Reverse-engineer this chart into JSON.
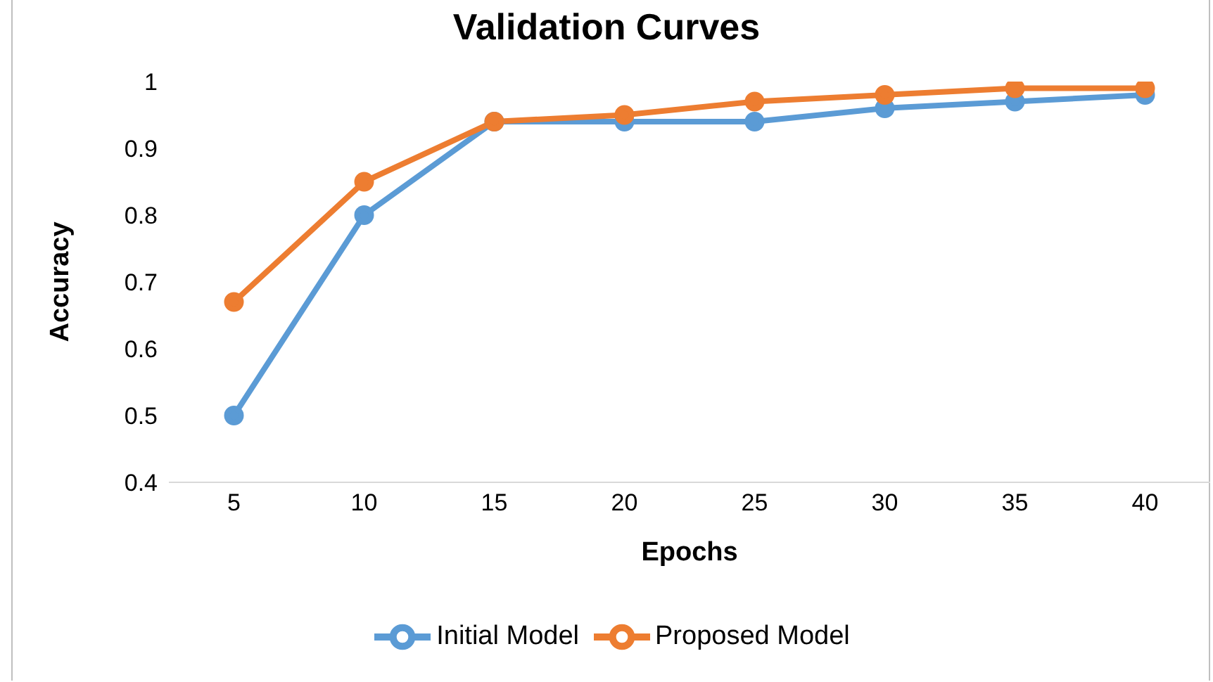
{
  "chart_data": {
    "type": "line",
    "title": "Validation Curves",
    "xlabel": "Epochs",
    "ylabel": "Accuracy",
    "categories": [
      "5",
      "10",
      "15",
      "20",
      "25",
      "30",
      "35",
      "40"
    ],
    "series": [
      {
        "name": "Initial Model",
        "color": "#5b9bd5",
        "values": [
          0.5,
          0.8,
          0.94,
          0.94,
          0.94,
          0.96,
          0.97,
          0.98
        ]
      },
      {
        "name": "Proposed Model",
        "color": "#ed7d31",
        "values": [
          0.67,
          0.85,
          0.94,
          0.95,
          0.97,
          0.98,
          0.99,
          0.99
        ]
      }
    ],
    "ylim": [
      0.4,
      1
    ],
    "yticks": [
      0.4,
      0.5,
      0.6,
      0.7,
      0.8,
      0.9,
      1
    ],
    "grid": false,
    "legend": "bottom",
    "marker": "circle",
    "line_style": "solid"
  }
}
